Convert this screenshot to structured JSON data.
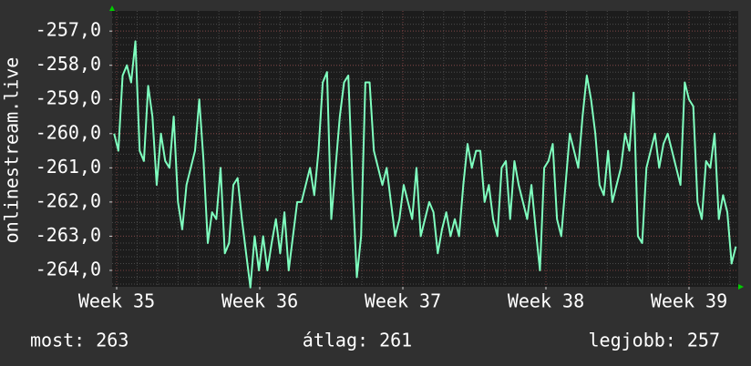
{
  "chart_data": {
    "type": "line",
    "y_label": "onlinestream.live",
    "x": [
      -3,
      2,
      7,
      12,
      17,
      22,
      27,
      32,
      37,
      42,
      47,
      52,
      57,
      62,
      67,
      72,
      77,
      82,
      87,
      92,
      97,
      102,
      107,
      112,
      117,
      122,
      127,
      132,
      137,
      142,
      147,
      152,
      157,
      162,
      167,
      172,
      177,
      182,
      187,
      192,
      197,
      202,
      207,
      212,
      217,
      222,
      227,
      232,
      237,
      242,
      247,
      252,
      257,
      262,
      267,
      272,
      277,
      282,
      287,
      292,
      297,
      302,
      307,
      312,
      317,
      322,
      327,
      332,
      337,
      342,
      347,
      352,
      357,
      362,
      367,
      372,
      377,
      382,
      387,
      392,
      397,
      402,
      407,
      412,
      417,
      422,
      427,
      432,
      437,
      442,
      447,
      452,
      457,
      462,
      467,
      472,
      477,
      482,
      487,
      492,
      497,
      502,
      507,
      512,
      517,
      522,
      527,
      532,
      537,
      542,
      547,
      552,
      557,
      562,
      567,
      572,
      577,
      582,
      587,
      592,
      597,
      602,
      607,
      612,
      617,
      622,
      627,
      632,
      637,
      642,
      647,
      652,
      657,
      662,
      667,
      672,
      677,
      682,
      687,
      692,
      697,
      702,
      707,
      712,
      717,
      722,
      727
    ],
    "series": [
      {
        "name": "onlinestream.live",
        "color": "#7fffbf",
        "values": [
          -260.0,
          -260.5,
          -258.3,
          -258.0,
          -258.5,
          -257.3,
          -260.5,
          -260.8,
          -258.6,
          -259.5,
          -261.5,
          -260.0,
          -260.8,
          -261.0,
          -259.5,
          -262.0,
          -262.8,
          -261.5,
          -261.0,
          -260.5,
          -259.0,
          -260.8,
          -263.2,
          -262.3,
          -262.5,
          -261.0,
          -263.5,
          -263.2,
          -261.5,
          -261.3,
          -262.5,
          -263.5,
          -264.5,
          -263.0,
          -264.0,
          -263.0,
          -264.0,
          -263.2,
          -262.5,
          -263.5,
          -262.3,
          -264.0,
          -263.0,
          -262.0,
          -262.0,
          -261.5,
          -261.0,
          -261.8,
          -260.5,
          -258.5,
          -258.2,
          -262.5,
          -261.0,
          -259.5,
          -258.5,
          -258.3,
          -261.5,
          -264.2,
          -263.0,
          -258.5,
          -258.5,
          -260.5,
          -261.0,
          -261.5,
          -261.0,
          -262.0,
          -263.0,
          -262.5,
          -261.5,
          -262.0,
          -262.5,
          -261.0,
          -263.0,
          -262.5,
          -262.0,
          -262.3,
          -263.5,
          -262.8,
          -262.3,
          -263.0,
          -262.5,
          -263.0,
          -261.5,
          -260.3,
          -261.0,
          -260.5,
          -260.5,
          -262.0,
          -261.5,
          -262.5,
          -263.0,
          -261.0,
          -260.8,
          -262.5,
          -260.8,
          -261.5,
          -262.0,
          -262.5,
          -261.5,
          -262.8,
          -264.0,
          -261.0,
          -260.8,
          -260.3,
          -262.5,
          -263.0,
          -261.5,
          -260.0,
          -260.5,
          -261.0,
          -259.5,
          -258.3,
          -259.0,
          -260.0,
          -261.5,
          -261.8,
          -260.5,
          -262.0,
          -261.5,
          -261.0,
          -260.0,
          -260.5,
          -258.8,
          -263.0,
          -263.2,
          -261.0,
          -260.5,
          -260.0,
          -261.0,
          -260.3,
          -260.0,
          -260.5,
          -261.0,
          -261.5,
          -258.5,
          -259.0,
          -259.2,
          -262.0,
          -262.5,
          -260.8,
          -261.0,
          -260.0,
          -262.5,
          -261.8,
          -262.3,
          -263.8,
          -263.3
        ]
      }
    ],
    "xlim": [
      -5.35,
      729.8
    ],
    "xticks": [
      {
        "value": 0,
        "label": "Week 35"
      },
      {
        "value": 168,
        "label": "Week 36"
      },
      {
        "value": 336,
        "label": "Week 37"
      },
      {
        "value": 504,
        "label": "Week 38"
      },
      {
        "value": 672,
        "label": "Week 39"
      }
    ],
    "ylim": [
      -264.48,
      -256.41
    ],
    "yticks": [
      {
        "value": -257,
        "label": "-257,0"
      },
      {
        "value": -258,
        "label": "-258,0"
      },
      {
        "value": -259,
        "label": "-259,0"
      },
      {
        "value": -260,
        "label": "-260,0"
      },
      {
        "value": -261,
        "label": "-261,0"
      },
      {
        "value": -262,
        "label": "-262,0"
      },
      {
        "value": -263,
        "label": "-263,0"
      },
      {
        "value": -264,
        "label": "-264,0"
      }
    ],
    "grid": true,
    "footer": [
      "most: 263",
      "átlag: 261",
      "legjobb: 257"
    ]
  }
}
